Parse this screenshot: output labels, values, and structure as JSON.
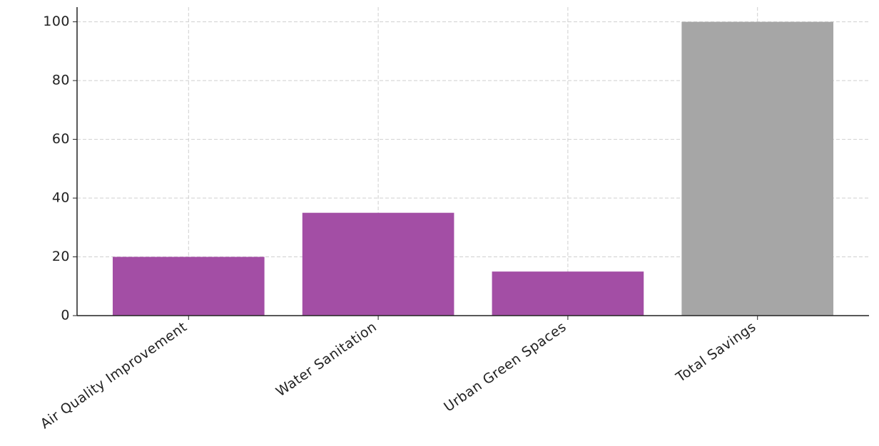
{
  "chart_data": {
    "type": "bar",
    "categories": [
      "Air Quality Improvement",
      "Water Sanitation",
      "Urban Green Spaces",
      "Total Savings"
    ],
    "values": [
      20,
      35,
      15,
      100
    ],
    "colors": [
      "#a34ea5",
      "#a34ea5",
      "#a34ea5",
      "#a6a6a6"
    ],
    "ylim": [
      0,
      105
    ],
    "yticks": [
      0,
      20,
      40,
      60,
      80,
      100
    ],
    "grid": true
  }
}
